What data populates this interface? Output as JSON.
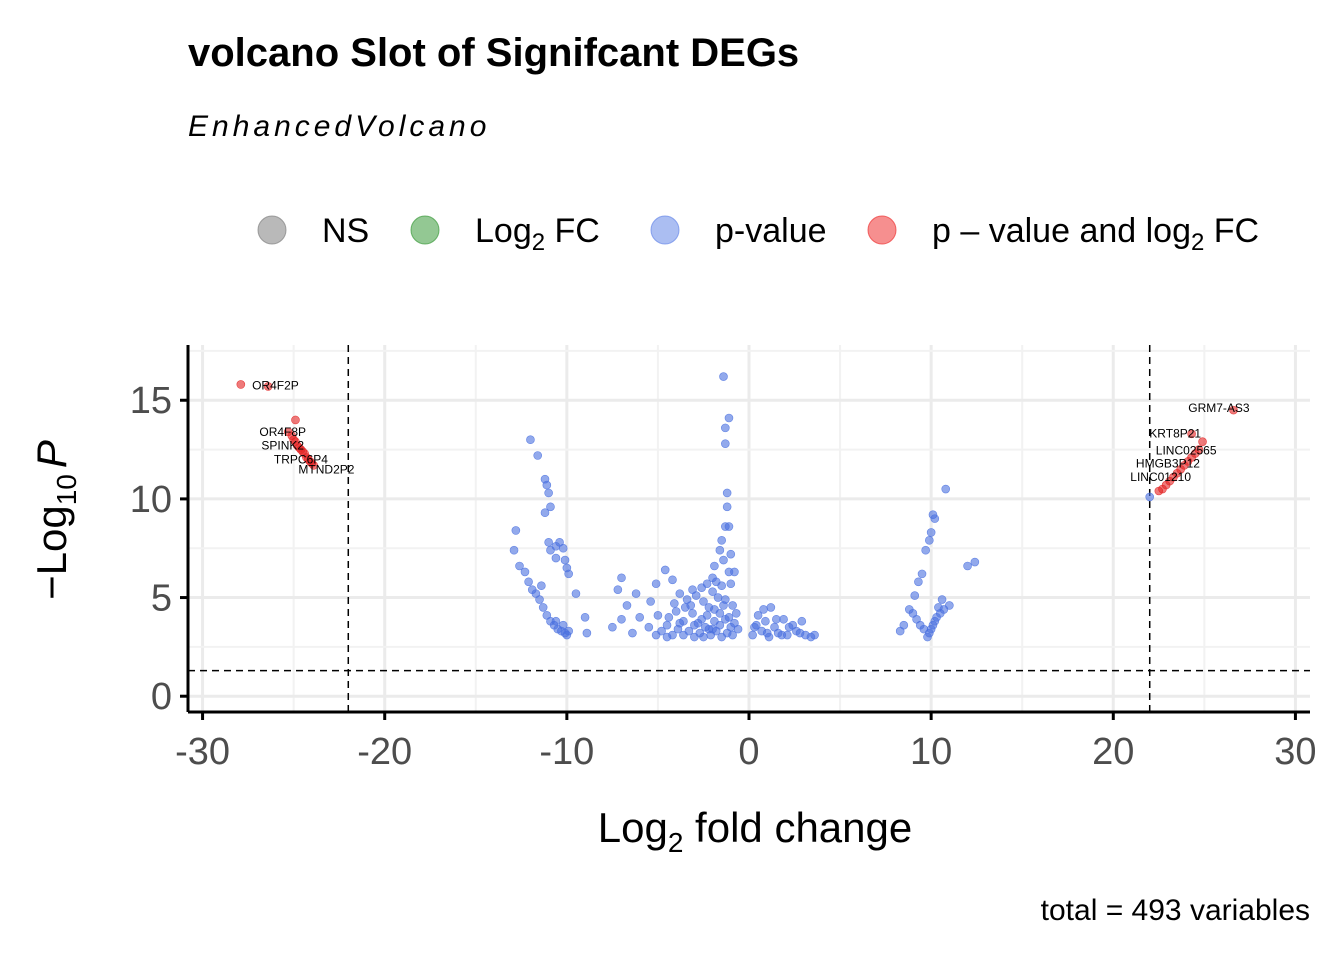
{
  "chart_data": {
    "type": "scatter",
    "title": "volcano Slot of Signifcant DEGs",
    "subtitle": "EnhancedVolcano",
    "xlabel_main": "Log",
    "xlabel_sub": "2",
    "xlabel_rest": " fold change",
    "ylabel_prefix": "−Log",
    "ylabel_sub": "10",
    "ylabel_var": "P",
    "caption": "total = 493 variables",
    "xlim": [
      -30.8,
      30.8
    ],
    "ylim": [
      -0.8,
      17.8
    ],
    "x_ticks": [
      -30,
      -20,
      -10,
      0,
      10,
      20,
      30
    ],
    "x_tick_labels": [
      "-30",
      "-20",
      "-10",
      "0",
      "10",
      "20",
      "30"
    ],
    "y_ticks": [
      0,
      5,
      10,
      15
    ],
    "y_tick_labels": [
      "0",
      "5",
      "10",
      "15"
    ],
    "fc_cutoff": 22,
    "p_cutoff_log10": 1.3,
    "grid": true,
    "legend_position": "top",
    "legend": [
      {
        "key": "NS",
        "label_main": "NS",
        "label_sub": "",
        "label_rest": "",
        "color": "#808080"
      },
      {
        "key": "FC",
        "label_main": "Log",
        "label_sub": "2",
        "label_rest": " FC",
        "color": "#3a9a3a"
      },
      {
        "key": "P",
        "label_main": "p-value",
        "label_sub": "",
        "label_rest": "",
        "color": "#6688e8"
      },
      {
        "key": "FC_P",
        "label_main": "p – value and log",
        "label_sub": "2",
        "label_rest": " FC",
        "color": "#ee3333"
      }
    ],
    "series": [
      {
        "name": "p-value",
        "color": "#4a70e0",
        "points": [
          [
            -1.4,
            16.2
          ],
          [
            -1.1,
            14.1
          ],
          [
            -1.3,
            12.8
          ],
          [
            -1.3,
            13.6
          ],
          [
            -1.2,
            10.3
          ],
          [
            -1.2,
            9.6
          ],
          [
            -1.1,
            8.6
          ],
          [
            -1.3,
            8.6
          ],
          [
            -1.5,
            7.9
          ],
          [
            -1.6,
            7.4
          ],
          [
            -1.0,
            7.2
          ],
          [
            -1.4,
            6.9
          ],
          [
            -1.9,
            6.6
          ],
          [
            -2.0,
            6.0
          ],
          [
            -1.8,
            5.8
          ],
          [
            -1.1,
            6.3
          ],
          [
            -0.8,
            6.3
          ],
          [
            -1.0,
            5.7
          ],
          [
            -1.5,
            5.6
          ],
          [
            -2.3,
            5.7
          ],
          [
            -2.6,
            5.5
          ],
          [
            -3.1,
            5.4
          ],
          [
            -3.8,
            5.2
          ],
          [
            -4.2,
            5.9
          ],
          [
            -4.6,
            6.4
          ],
          [
            -5.1,
            5.7
          ],
          [
            -5.4,
            4.8
          ],
          [
            -6.2,
            5.2
          ],
          [
            -6.7,
            4.6
          ],
          [
            -7.0,
            6.0
          ],
          [
            -7.2,
            5.4
          ],
          [
            -7.0,
            3.9
          ],
          [
            -6.4,
            3.2
          ],
          [
            -7.5,
            3.5
          ],
          [
            -6.0,
            4.0
          ],
          [
            -5.5,
            3.5
          ],
          [
            -5.0,
            4.1
          ],
          [
            -4.5,
            3.6
          ],
          [
            -4.0,
            4.3
          ],
          [
            -3.6,
            3.8
          ],
          [
            -3.2,
            4.6
          ],
          [
            -2.8,
            3.7
          ],
          [
            -2.5,
            4.8
          ],
          [
            -2.2,
            3.4
          ],
          [
            -1.9,
            4.4
          ],
          [
            -1.6,
            3.6
          ],
          [
            -1.3,
            4.9
          ],
          [
            -1.0,
            3.5
          ],
          [
            -0.7,
            4.2
          ],
          [
            -0.9,
            3.1
          ],
          [
            -1.2,
            3.2
          ],
          [
            -1.5,
            3.0
          ],
          [
            -1.8,
            3.3
          ],
          [
            -2.1,
            3.1
          ],
          [
            -2.4,
            3.5
          ],
          [
            -2.7,
            3.2
          ],
          [
            -3.0,
            3.0
          ],
          [
            -3.3,
            3.3
          ],
          [
            -3.6,
            3.1
          ],
          [
            -3.9,
            3.4
          ],
          [
            -4.2,
            3.1
          ],
          [
            -4.5,
            3.0
          ],
          [
            -4.8,
            3.3
          ],
          [
            -5.1,
            3.1
          ],
          [
            -2.9,
            5.1
          ],
          [
            -3.4,
            4.9
          ],
          [
            -2.0,
            5.3
          ],
          [
            -1.7,
            5.0
          ],
          [
            -1.4,
            4.6
          ],
          [
            -1.1,
            4.0
          ],
          [
            -0.8,
            3.7
          ],
          [
            -2.3,
            4.1
          ],
          [
            -2.6,
            3.9
          ],
          [
            -3.1,
            4.2
          ],
          [
            -3.5,
            4.5
          ],
          [
            -4.1,
            4.7
          ],
          [
            -1.9,
            3.8
          ],
          [
            -2.2,
            4.5
          ],
          [
            -1.6,
            4.2
          ],
          [
            -0.9,
            4.6
          ],
          [
            -0.6,
            3.4
          ],
          [
            -3.8,
            3.7
          ],
          [
            -4.4,
            4.0
          ],
          [
            -2.5,
            3.0
          ],
          [
            -1.3,
            3.9
          ],
          [
            -3.0,
            3.6
          ],
          [
            -2.0,
            3.4
          ],
          [
            0.2,
            3.1
          ],
          [
            0.4,
            3.6
          ],
          [
            0.5,
            4.1
          ],
          [
            0.7,
            3.3
          ],
          [
            0.9,
            3.8
          ],
          [
            1.1,
            3.0
          ],
          [
            1.2,
            4.5
          ],
          [
            1.4,
            3.5
          ],
          [
            1.6,
            3.2
          ],
          [
            1.9,
            3.9
          ],
          [
            2.1,
            3.1
          ],
          [
            2.4,
            3.6
          ],
          [
            2.6,
            3.3
          ],
          [
            2.9,
            3.8
          ],
          [
            3.1,
            3.1
          ],
          [
            3.4,
            3.0
          ],
          [
            3.6,
            3.1
          ],
          [
            0.8,
            4.4
          ],
          [
            1.5,
            3.9
          ],
          [
            2.2,
            3.5
          ],
          [
            1.8,
            3.1
          ],
          [
            0.3,
            3.5
          ],
          [
            1.0,
            3.2
          ],
          [
            2.8,
            3.2
          ],
          [
            -12.0,
            13.0
          ],
          [
            -11.6,
            12.2
          ],
          [
            -11.2,
            11.0
          ],
          [
            -11.1,
            10.7
          ],
          [
            -11.0,
            10.3
          ],
          [
            -10.9,
            9.6
          ],
          [
            -11.2,
            9.3
          ],
          [
            -11.0,
            7.8
          ],
          [
            -10.9,
            7.4
          ],
          [
            -10.6,
            7.0
          ],
          [
            -10.4,
            7.8
          ],
          [
            -10.2,
            7.5
          ],
          [
            -10.1,
            6.9
          ],
          [
            -10.0,
            6.5
          ],
          [
            -10.6,
            7.6
          ],
          [
            -9.9,
            6.2
          ],
          [
            -12.8,
            8.4
          ],
          [
            -12.9,
            7.4
          ],
          [
            -12.6,
            6.6
          ],
          [
            -12.3,
            6.3
          ],
          [
            -12.1,
            5.8
          ],
          [
            -11.9,
            5.4
          ],
          [
            -11.7,
            5.2
          ],
          [
            -11.5,
            4.9
          ],
          [
            -11.3,
            4.5
          ],
          [
            -11.1,
            4.1
          ],
          [
            -10.9,
            3.8
          ],
          [
            -10.7,
            3.6
          ],
          [
            -10.5,
            3.4
          ],
          [
            -10.3,
            3.3
          ],
          [
            -10.1,
            3.2
          ],
          [
            -10.0,
            3.1
          ],
          [
            -9.9,
            3.3
          ],
          [
            -10.6,
            3.8
          ],
          [
            -10.2,
            3.6
          ],
          [
            -9.5,
            5.2
          ],
          [
            -9.0,
            4.0
          ],
          [
            -8.9,
            3.2
          ],
          [
            -11.4,
            5.6
          ],
          [
            9.8,
            3.0
          ],
          [
            9.9,
            3.2
          ],
          [
            10.0,
            3.4
          ],
          [
            10.1,
            3.6
          ],
          [
            10.2,
            3.8
          ],
          [
            10.3,
            4.0
          ],
          [
            10.5,
            4.2
          ],
          [
            10.7,
            4.4
          ],
          [
            10.4,
            4.5
          ],
          [
            11.0,
            4.6
          ],
          [
            9.6,
            3.4
          ],
          [
            9.4,
            3.6
          ],
          [
            9.2,
            3.9
          ],
          [
            9.0,
            4.2
          ],
          [
            8.8,
            4.4
          ],
          [
            8.5,
            3.6
          ],
          [
            8.3,
            3.3
          ],
          [
            9.1,
            5.1
          ],
          [
            9.3,
            5.8
          ],
          [
            9.5,
            6.2
          ],
          [
            9.7,
            7.4
          ],
          [
            9.9,
            7.9
          ],
          [
            10.0,
            8.3
          ],
          [
            10.2,
            9.0
          ],
          [
            10.1,
            9.2
          ],
          [
            10.8,
            10.5
          ],
          [
            12.0,
            6.6
          ],
          [
            12.4,
            6.8
          ],
          [
            10.6,
            4.9
          ],
          [
            22.0,
            10.1
          ]
        ]
      },
      {
        "name": "p – value and log2 FC",
        "color": "#e32222",
        "points": [
          [
            -27.9,
            15.8
          ],
          [
            -26.4,
            15.7
          ],
          [
            -24.9,
            14.0
          ],
          [
            -25.3,
            13.4
          ],
          [
            -25.1,
            13.2
          ],
          [
            -25.0,
            13.0
          ],
          [
            -24.9,
            12.9
          ],
          [
            -24.8,
            12.7
          ],
          [
            -24.7,
            12.6
          ],
          [
            -24.6,
            12.5
          ],
          [
            -24.5,
            12.4
          ],
          [
            -24.4,
            12.3
          ],
          [
            -24.3,
            12.1
          ],
          [
            -24.2,
            12.0
          ],
          [
            -24.1,
            11.9
          ],
          [
            -24.0,
            11.8
          ],
          [
            -23.9,
            11.7
          ],
          [
            26.6,
            14.5
          ],
          [
            24.3,
            13.3
          ],
          [
            24.9,
            12.9
          ],
          [
            24.7,
            12.5
          ],
          [
            24.5,
            12.3
          ],
          [
            24.3,
            12.1
          ],
          [
            24.1,
            11.9
          ],
          [
            23.9,
            11.7
          ],
          [
            23.7,
            11.5
          ],
          [
            23.5,
            11.3
          ],
          [
            23.3,
            11.1
          ],
          [
            23.1,
            10.9
          ],
          [
            22.9,
            10.7
          ],
          [
            22.7,
            10.5
          ],
          [
            22.5,
            10.4
          ]
        ]
      }
    ],
    "gene_labels": [
      {
        "text": "OR4F2P",
        "x": -26.0,
        "y": 15.55
      },
      {
        "text": "OR4F8P",
        "x": -25.6,
        "y": 13.2
      },
      {
        "text": "SPINK2",
        "x": -25.6,
        "y": 12.5
      },
      {
        "text": "TRPC6P4",
        "x": -24.6,
        "y": 11.8
      },
      {
        "text": "MTND2P2",
        "x": -23.2,
        "y": 11.3
      },
      {
        "text": "GRM7-AS3",
        "x": 25.8,
        "y": 14.4
      },
      {
        "text": "KRT8P21",
        "x": 23.4,
        "y": 13.1
      },
      {
        "text": "LINC02565",
        "x": 24.0,
        "y": 12.25
      },
      {
        "text": "HMGB3P12",
        "x": 23.0,
        "y": 11.6
      },
      {
        "text": "LINC01210",
        "x": 22.6,
        "y": 10.9
      }
    ]
  }
}
